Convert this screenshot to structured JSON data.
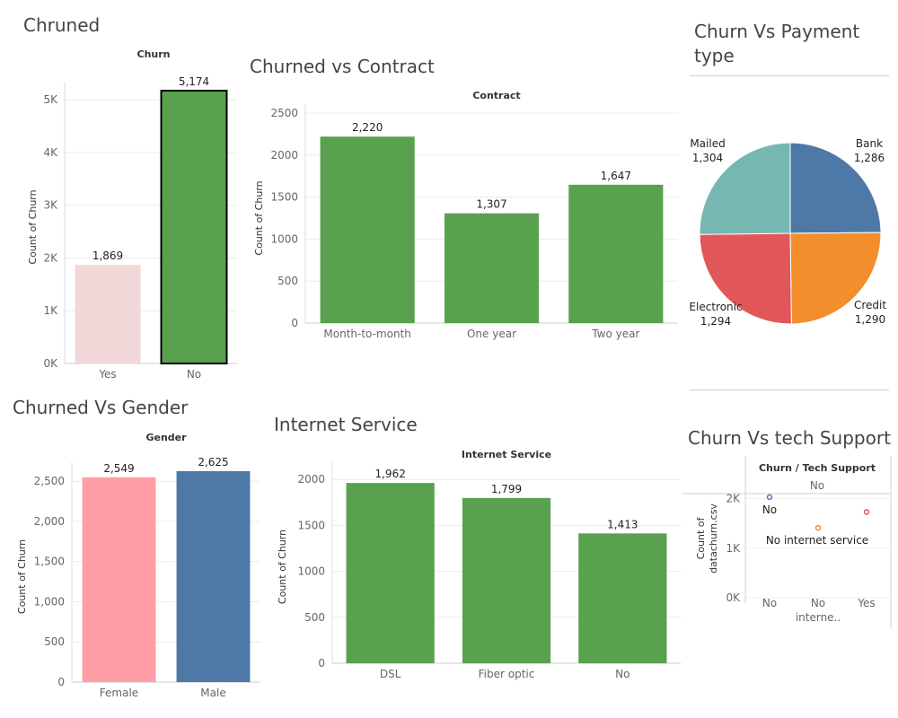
{
  "sheets": {
    "churned": {
      "title": "Chruned"
    },
    "contract": {
      "title": "Churned vs Contract"
    },
    "payment": {
      "title_line1": "Churn Vs Payment",
      "title_line2": "type"
    },
    "gender": {
      "title": "Churned Vs Gender"
    },
    "internet": {
      "title": "Internet Service"
    },
    "tech": {
      "title": "Churn Vs tech Support"
    }
  },
  "chart_data": [
    {
      "id": "churn",
      "type": "bar",
      "header": "Churn",
      "ylabel": "Count of Churn",
      "categories": [
        "Yes",
        "No"
      ],
      "values": [
        1869,
        5174
      ],
      "value_labels": [
        "1,869",
        "5,174"
      ],
      "yticks": [
        0,
        1000,
        2000,
        3000,
        4000,
        5000
      ],
      "ytick_labels": [
        "0K",
        "1K",
        "2K",
        "3K",
        "4K",
        "5K"
      ],
      "ylim": [
        0,
        5174
      ],
      "colors": [
        "#f2d7d9",
        "#59a14f"
      ],
      "label_colors": [
        "#d8c3c5",
        "#222222"
      ],
      "highlighted": "No"
    },
    {
      "id": "contract",
      "type": "bar",
      "header": "Contract",
      "ylabel": "Count of Churn",
      "categories": [
        "Month-to-month",
        "One year",
        "Two year"
      ],
      "values": [
        2220,
        1307,
        1647
      ],
      "value_labels": [
        "2,220",
        "1,307",
        "1,647"
      ],
      "yticks": [
        0,
        500,
        1000,
        1500,
        2000,
        2500
      ],
      "ytick_labels": [
        "0",
        "500",
        "1000",
        "1500",
        "2000",
        "2500"
      ],
      "ylim": [
        0,
        2500
      ],
      "colors": [
        "#59a14f",
        "#59a14f",
        "#59a14f"
      ]
    },
    {
      "id": "payment",
      "type": "pie",
      "slices": [
        {
          "label": "Bank",
          "value": 1286,
          "value_label": "1,286",
          "color": "#4e79a7"
        },
        {
          "label": "Credit",
          "value": 1290,
          "value_label": "1,290",
          "color": "#f28e2b"
        },
        {
          "label": "Electronic",
          "value": 1294,
          "value_label": "1,294",
          "color": "#e15759"
        },
        {
          "label": "Mailed",
          "value": 1304,
          "value_label": "1,304",
          "color": "#76b7b2"
        }
      ]
    },
    {
      "id": "gender",
      "type": "bar",
      "header": "Gender",
      "ylabel": "Count of Churn",
      "categories": [
        "Female",
        "Male"
      ],
      "values": [
        2549,
        2625
      ],
      "value_labels": [
        "2,549",
        "2,625"
      ],
      "yticks": [
        0,
        500,
        1000,
        1500,
        2000,
        2500
      ],
      "ytick_labels": [
        "0",
        "500",
        "1,000",
        "1,500",
        "2,000",
        "2,500"
      ],
      "ylim": [
        0,
        2625
      ],
      "colors": [
        "#ff9da7",
        "#4e79a7"
      ]
    },
    {
      "id": "internet",
      "type": "bar",
      "header": "Internet Service",
      "ylabel": "Count of Churn",
      "categories": [
        "DSL",
        "Fiber optic",
        "No"
      ],
      "values": [
        1962,
        1799,
        1413
      ],
      "value_labels": [
        "1,962",
        "1,799",
        "1,413"
      ],
      "yticks": [
        0,
        500,
        1000,
        1500,
        2000
      ],
      "ytick_labels": [
        "0",
        "500",
        "1000",
        "1500",
        "2000"
      ],
      "ylim": [
        0,
        2100
      ],
      "colors": [
        "#59a14f",
        "#59a14f",
        "#59a14f"
      ]
    },
    {
      "id": "tech",
      "type": "scatter",
      "header": "Churn / Tech Support",
      "subheader": "No",
      "ylabel_line1": "Count of",
      "ylabel_line2": "datachurn.csv",
      "columns": [
        "No",
        "No interne..",
        "Yes"
      ],
      "column_label_lines": [
        [
          "No"
        ],
        [
          "No",
          "interne.."
        ],
        [
          "Yes"
        ]
      ],
      "yticks": [
        0,
        1000,
        2000
      ],
      "ytick_labels": [
        "0K",
        "1K",
        "2K"
      ],
      "ylim": [
        0,
        2100
      ],
      "points": [
        {
          "column": "No",
          "value": 2030,
          "color": "#4e79a7",
          "label": "No"
        },
        {
          "column": "No interne..",
          "value": 1410,
          "color": "#f28e2b",
          "label": "No internet service"
        },
        {
          "column": "Yes",
          "value": 1730,
          "color": "#e15759",
          "label": ""
        }
      ]
    }
  ]
}
